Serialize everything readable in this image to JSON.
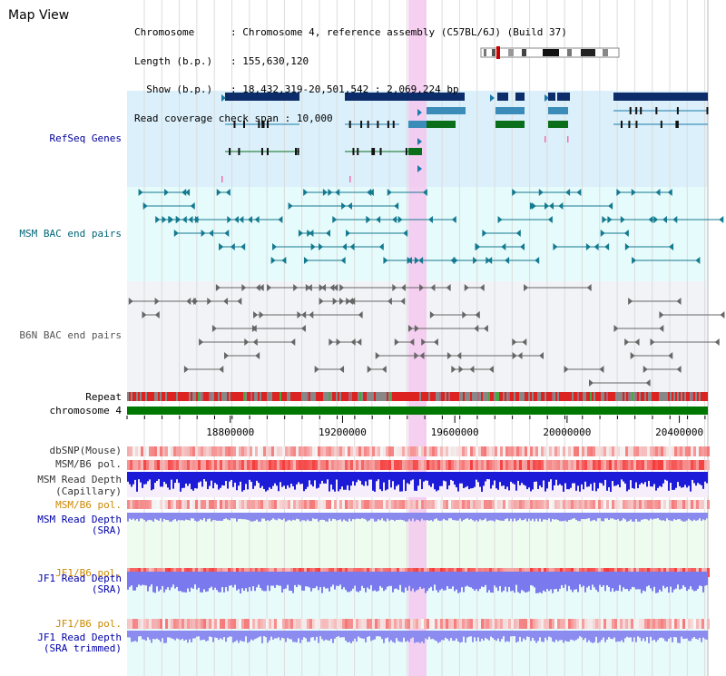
{
  "title": "Map View",
  "info": {
    "chromosome_key": "Chromosome      ",
    "chromosome_val": "Chromosome 4, reference assembly (C57BL/6J) (Build 37)",
    "length_key": "Length (b.p.)   ",
    "length_val": "155,630,120",
    "show_key": "  Show (b.p.)   ",
    "show_val": "18,432,319-20,501,542 : 2,069,224 bp",
    "span_key": "Read coverage check span",
    "span_val": "10,000"
  },
  "tracks": {
    "refseq": "RefSeq Genes",
    "msm_bac": "MSM BAC end pairs",
    "b6n_bac": "B6N BAC end pairs",
    "repeat": "Repeat",
    "chromosome": "chromosome 4",
    "dbsnp": "dbSNP(Mouse)",
    "msm_b6_pol": "MSM/B6 pol.",
    "msm_depth_cap_1": "MSM Read Depth",
    "msm_depth_cap_2": "(Capillary)",
    "msm_b6_pol_2": "MSM/B6 pol.",
    "msm_depth_sra_1": "MSM Read Depth",
    "msm_depth_sra_2": "(SRA)",
    "jf1_b6_pol": "JF1/B6 pol.",
    "jf1_depth_sra_1": "JF1 Read Depth",
    "jf1_depth_sra_2": "(SRA)",
    "jf1_b6_pol_2": "JF1/B6 pol.",
    "jf1_depth_trim_1": "JF1 Read Depth",
    "jf1_depth_trim_2": "(SRA trimmed)"
  },
  "axis": {
    "ticks": [
      18800000,
      19200000,
      19600000,
      20000000,
      20400000
    ],
    "range": [
      18432319,
      20501542
    ]
  },
  "colors": {
    "refseq_label": "#000099",
    "msm_label": "#006677",
    "b6n_label": "#555555",
    "pol_label": "#cc8800",
    "depth_label": "#0000aa",
    "highlight": "#f5c8ef",
    "chromosome_bar": "#007700"
  }
}
